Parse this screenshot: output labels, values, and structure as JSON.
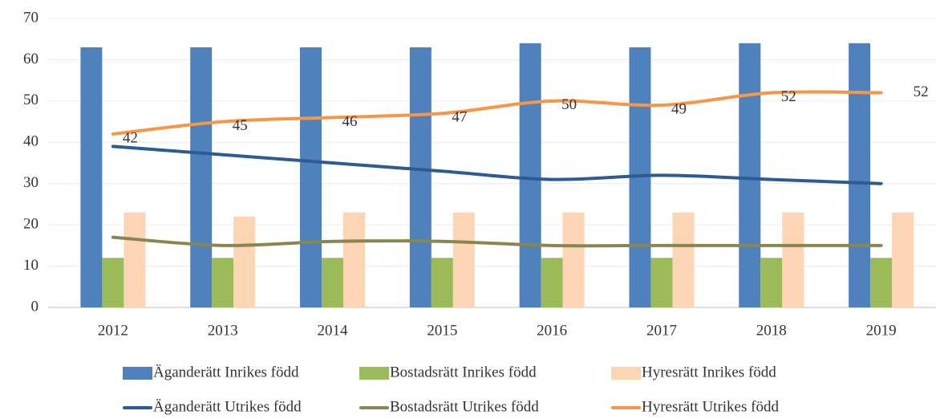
{
  "chart_data": {
    "type": "bar_line",
    "categories": [
      "2012",
      "2013",
      "2014",
      "2015",
      "2016",
      "2017",
      "2018",
      "2019"
    ],
    "series": [
      {
        "name": "Äganderätt Inrikes född",
        "type": "bar",
        "color": "#4f81bd",
        "values": [
          63,
          63,
          63,
          63,
          64,
          63,
          64,
          64
        ]
      },
      {
        "name": "Bostadsrätt Inrikes född",
        "type": "bar",
        "color": "#9bbb59",
        "values": [
          12,
          12,
          12,
          12,
          12,
          12,
          12,
          12
        ]
      },
      {
        "name": "Hyresrätt Inrikes född",
        "type": "bar",
        "color": "#fcd5b5",
        "values": [
          23,
          22,
          23,
          23,
          23,
          23,
          23,
          23
        ]
      },
      {
        "name": "Äganderätt Utrikes född",
        "type": "line",
        "color": "#2e5b94",
        "values": [
          39,
          37,
          35,
          33,
          31,
          32,
          31,
          30
        ]
      },
      {
        "name": "Bostadsrätt Utrikes född",
        "type": "line",
        "color": "#8a8650",
        "values": [
          17,
          15,
          16,
          16,
          15,
          15,
          15,
          15
        ]
      },
      {
        "name": "Hyresrätt Utrikes född",
        "type": "line",
        "color": "#f79646",
        "values": [
          42,
          45,
          46,
          47,
          50,
          49,
          52,
          52
        ],
        "data_labels": true
      }
    ],
    "ylim": [
      0,
      70
    ],
    "yticks": [
      0,
      10,
      20,
      30,
      40,
      50,
      60,
      70
    ],
    "grid": true,
    "legend": "bottom"
  }
}
